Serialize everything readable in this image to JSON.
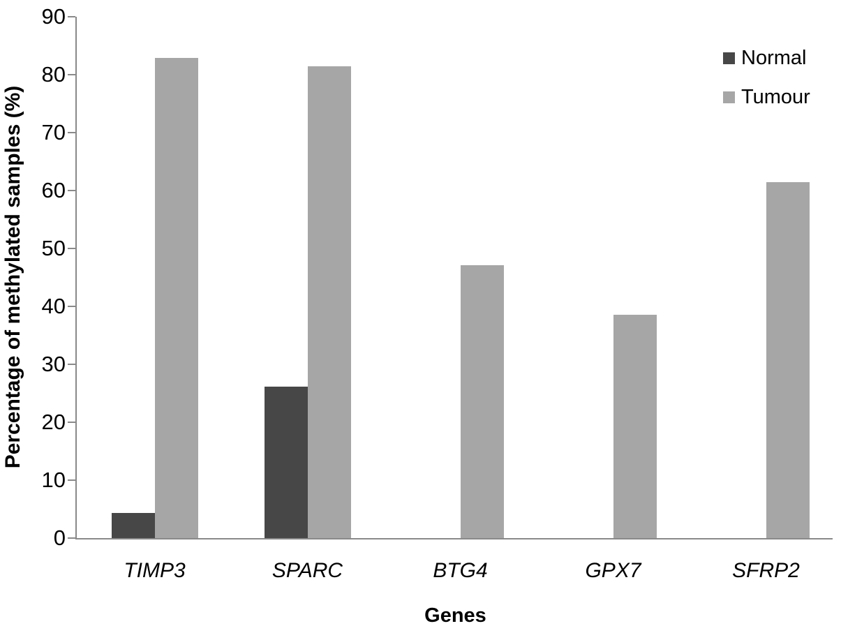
{
  "chart_data": {
    "type": "bar",
    "title": "",
    "categories": [
      "TIMP3",
      "SPARC",
      "BTG4",
      "GPX7",
      "SFRP2"
    ],
    "series": [
      {
        "name": "Normal",
        "color": "#474747",
        "values": [
          4.3,
          26.1,
          0,
          0,
          0
        ]
      },
      {
        "name": "Tumour",
        "color": "#a6a6a6",
        "values": [
          82.9,
          81.4,
          47.1,
          38.6,
          61.4
        ]
      }
    ],
    "xlabel": "Genes",
    "ylabel": "Percentage of methylated samples (%)",
    "ylim": [
      0,
      90
    ],
    "yticks": [
      0,
      10,
      20,
      30,
      40,
      50,
      60,
      70,
      80,
      90
    ],
    "grid": false,
    "legend_position": "top-right",
    "axis_color": "#898989",
    "text_color": "#000000",
    "background": "#ffffff"
  }
}
